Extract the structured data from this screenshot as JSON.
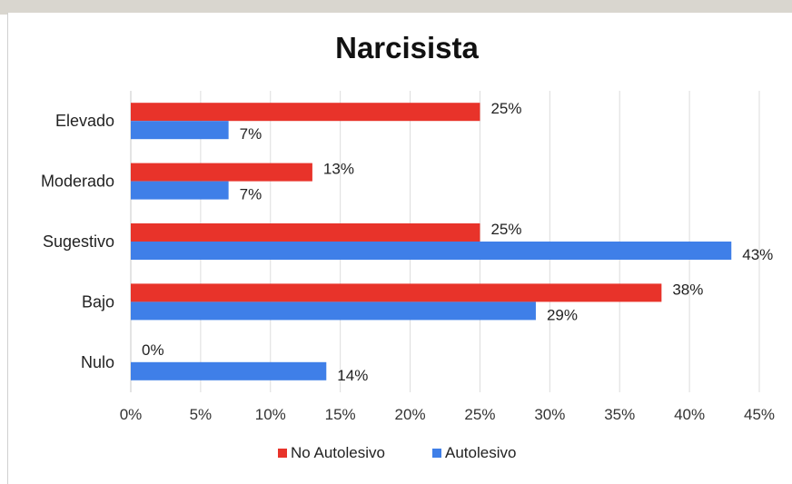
{
  "chart_data": {
    "type": "bar",
    "orientation": "horizontal",
    "title": "Narcisista",
    "categories": [
      "Elevado",
      "Moderado",
      "Sugestivo",
      "Bajo",
      "Nulo"
    ],
    "series": [
      {
        "name": "No Autolesivo",
        "color": "#e8332a",
        "values": [
          25,
          13,
          25,
          38,
          0
        ],
        "labels": [
          "25%",
          "13%",
          "25%",
          "38%",
          "0%"
        ]
      },
      {
        "name": "Autolesivo",
        "color": "#3f7fe8",
        "values": [
          7,
          7,
          43,
          29,
          14
        ],
        "labels": [
          "7%",
          "7%",
          "43%",
          "29%",
          "14%"
        ]
      }
    ],
    "xlim": [
      0,
      45
    ],
    "xticks": [
      "0%",
      "5%",
      "10%",
      "15%",
      "20%",
      "25%",
      "30%",
      "35%",
      "40%",
      "45%"
    ],
    "grid": true,
    "legend": "bottom"
  }
}
